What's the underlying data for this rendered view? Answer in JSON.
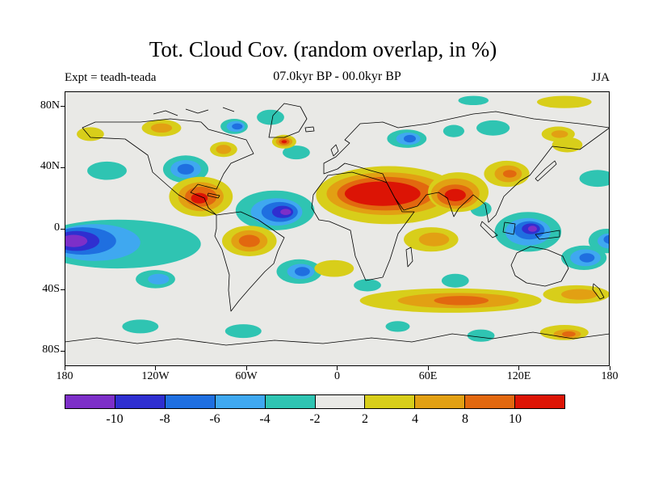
{
  "title": "Tot. Cloud Cov. (random overlap, in %)",
  "subtitle": "07.0kyr BP - 00.0kyr BP",
  "experiment_label": "Expt = teadh-teada",
  "season_label": "JJA",
  "chart_data": {
    "type": "heatmap",
    "variable": "Total cloud cover anomaly (random overlap)",
    "units": "%",
    "title": "Tot. Cloud Cov. (random overlap, in %)",
    "subtitle": "07.0kyr BP - 00.0kyr BP",
    "experiment": "teadh-teada",
    "season": "JJA",
    "projection": "equirectangular",
    "lon_range": [
      -180,
      180
    ],
    "lat_range": [
      -90,
      90
    ],
    "x_ticks": [
      {
        "label": "180",
        "lon": -180
      },
      {
        "label": "120W",
        "lon": -120
      },
      {
        "label": "60W",
        "lon": -60
      },
      {
        "label": "0",
        "lon": 0
      },
      {
        "label": "60E",
        "lon": 60
      },
      {
        "label": "120E",
        "lon": 120
      },
      {
        "label": "180",
        "lon": 180
      }
    ],
    "y_ticks": [
      {
        "label": "80N",
        "lat": 80
      },
      {
        "label": "40N",
        "lat": 40
      },
      {
        "label": "0",
        "lat": 0
      },
      {
        "label": "40S",
        "lat": -40
      },
      {
        "label": "80S",
        "lat": -80
      }
    ],
    "colorbar": {
      "boundary_labels": [
        "-10",
        "-8",
        "-6",
        "-4",
        "-2",
        "2",
        "4",
        "8",
        "10"
      ],
      "segment_colors": [
        "#7d2fc8",
        "#2f2fd0",
        "#1f6fe0",
        "#3fa8f0",
        "#2fc4b2",
        "#e9e9e6",
        "#d8ce1a",
        "#e2a013",
        "#e2680f",
        "#dc1405"
      ]
    },
    "background_value_color": "#e9e9e6",
    "level_colors": {
      "p": "#7d2fc8",
      "i": "#2f2fd0",
      "b": "#1f6fe0",
      "lb": "#3fa8f0",
      "c": "#2fc4b2",
      "y": "#d8ce1a",
      "g": "#e2a013",
      "o": "#e2680f",
      "r": "#dc1405"
    },
    "anomaly_regions": [
      [
        "c",
        -145,
        -10,
        55,
        16
      ],
      [
        "lb",
        -160,
        -9,
        30,
        12
      ],
      [
        "b",
        -168,
        -8,
        22,
        9
      ],
      [
        "i",
        -172,
        -8,
        15,
        6.5
      ],
      [
        "p",
        -174,
        -8,
        9,
        4
      ],
      [
        "c",
        178,
        -8,
        12,
        8
      ],
      [
        "lb",
        180,
        -8,
        8,
        5
      ],
      [
        "b",
        181,
        -7,
        5,
        3
      ],
      [
        "c",
        -41,
        12,
        26,
        13
      ],
      [
        "lb",
        -40,
        11,
        17,
        9
      ],
      [
        "b",
        -38,
        11,
        12,
        6.5
      ],
      [
        "i",
        -36,
        11,
        7,
        4
      ],
      [
        "p",
        -34,
        11,
        3.5,
        2
      ],
      [
        "c",
        -100,
        39,
        15,
        9
      ],
      [
        "lb",
        -100,
        39,
        10,
        6
      ],
      [
        "b",
        -100,
        39,
        5.5,
        3.5
      ],
      [
        "c",
        -152,
        38,
        13,
        6
      ],
      [
        "c",
        126,
        -2,
        22,
        13
      ],
      [
        "lb",
        126,
        -2,
        15,
        9
      ],
      [
        "b",
        127,
        -1,
        10,
        6
      ],
      [
        "i",
        128,
        0,
        6,
        3.5
      ],
      [
        "p",
        129,
        0,
        3,
        2
      ],
      [
        "c",
        163,
        -19,
        15,
        8
      ],
      [
        "lb",
        164,
        -19,
        10,
        5.5
      ],
      [
        "b",
        165,
        -19,
        5,
        3
      ],
      [
        "c",
        -25,
        -28,
        15,
        8
      ],
      [
        "lb",
        -24,
        -28,
        9,
        5
      ],
      [
        "b",
        -23,
        -28,
        5,
        3
      ],
      [
        "c",
        46,
        59,
        13,
        6
      ],
      [
        "lb",
        47,
        59,
        8,
        4
      ],
      [
        "b",
        48,
        59,
        4,
        2.5
      ],
      [
        "c",
        103,
        66,
        11,
        5
      ],
      [
        "c",
        77,
        64,
        7,
        4
      ],
      [
        "c",
        -44,
        73,
        9,
        5
      ],
      [
        "c",
        -68,
        67,
        9,
        5
      ],
      [
        "lb",
        -67,
        67,
        6,
        3.5
      ],
      [
        "b",
        -66,
        67,
        3.5,
        2
      ],
      [
        "c",
        -27,
        50,
        9,
        4.5
      ],
      [
        "c",
        172,
        33,
        12,
        5.5
      ],
      [
        "c",
        95,
        13,
        7,
        5
      ],
      [
        "c",
        78,
        -34,
        9,
        4.5
      ],
      [
        "c",
        20,
        -37,
        9,
        4
      ],
      [
        "c",
        -120,
        -33,
        13,
        6
      ],
      [
        "lb",
        -118,
        -33,
        7,
        3.5
      ],
      [
        "c",
        -62,
        -67,
        12,
        4.5
      ],
      [
        "c",
        95,
        -70,
        9,
        4
      ],
      [
        "c",
        -130,
        -64,
        12,
        4.5
      ],
      [
        "c",
        40,
        -64,
        8,
        3.5
      ],
      [
        "c",
        90,
        84,
        10,
        3
      ],
      [
        "y",
        34,
        22,
        48,
        19
      ],
      [
        "g",
        33,
        23,
        40,
        14
      ],
      [
        "o",
        32,
        23,
        32,
        11
      ],
      [
        "r",
        30,
        23,
        25,
        8
      ],
      [
        "y",
        80,
        24,
        20,
        13
      ],
      [
        "g",
        78,
        23,
        16,
        10
      ],
      [
        "o",
        78,
        22,
        12,
        7
      ],
      [
        "r",
        78,
        22,
        7,
        4
      ],
      [
        "y",
        -90,
        21,
        21,
        13
      ],
      [
        "g",
        -90,
        21,
        15,
        9.5
      ],
      [
        "o",
        -90,
        21,
        10.5,
        6.5
      ],
      [
        "r",
        -91,
        20,
        5.5,
        3.5
      ],
      [
        "y",
        -58,
        -8,
        18,
        10
      ],
      [
        "g",
        -58,
        -8,
        12,
        7
      ],
      [
        "o",
        -58,
        -8,
        7,
        4
      ],
      [
        "y",
        62,
        -7,
        18,
        8
      ],
      [
        "g",
        64,
        -7,
        10,
        4.5
      ],
      [
        "y",
        112,
        36,
        15,
        8.5
      ],
      [
        "g",
        113,
        36,
        9,
        5.5
      ],
      [
        "o",
        114,
        36,
        4.5,
        2.5
      ],
      [
        "y",
        75,
        -47,
        60,
        8
      ],
      [
        "g",
        80,
        -47,
        40,
        5
      ],
      [
        "o",
        82,
        -47,
        18,
        3
      ],
      [
        "y",
        158,
        -43,
        22,
        6
      ],
      [
        "g",
        160,
        -43,
        12,
        3.5
      ],
      [
        "y",
        150,
        -68,
        16,
        5
      ],
      [
        "g",
        152,
        -69,
        9,
        3
      ],
      [
        "o",
        153,
        -69,
        4.5,
        1.8
      ],
      [
        "y",
        -116,
        66,
        13,
        5.5
      ],
      [
        "g",
        -116,
        66,
        7,
        3
      ],
      [
        "y",
        -163,
        62,
        9,
        4.5
      ],
      [
        "y",
        146,
        62,
        11,
        5
      ],
      [
        "g",
        147,
        62,
        5.5,
        2.5
      ],
      [
        "y",
        -35,
        57,
        8,
        4.5
      ],
      [
        "g",
        -35,
        57,
        5.5,
        3
      ],
      [
        "o",
        -35,
        57,
        3.5,
        2
      ],
      [
        "r",
        -35,
        57,
        1.8,
        1
      ],
      [
        "y",
        -2,
        -26,
        13,
        5.5
      ],
      [
        "y",
        -75,
        52,
        9,
        5
      ],
      [
        "g",
        -75,
        52,
        5,
        3
      ],
      [
        "y",
        152,
        55,
        10,
        5
      ],
      [
        "y",
        150,
        83,
        18,
        4
      ]
    ],
    "basemap_paths": [
      "M22,45 L38,38 L94,38 L131,34 L169,38 L178,47 L225,60 L234,77 L206,89 L197,102 L188,121 L165,115 L156,125 L173,132 L178,144 L188,153 L165,142 L141,128 L126,115 L109,100 L103,79 L75,59 L32,57 Z",
      "M188,153 L218,149 L240,159 L272,181 L264,198 L259,213 L248,223 L229,244 L216,259 L206,272 L203,246 L204,227 L195,196 L186,179 L188,170 Z",
      "M326,104 L356,100 L394,111 L399,113 L418,149 L433,149 L413,176 L403,208 L394,230 L373,234 L360,204 L354,172 L328,161 L315,159 L306,144 L308,128 L319,113 Z",
      "M321,102 L321,89 L336,81 L353,64 L347,60 L366,40 L394,38 L413,45 L450,40 L506,28 L534,25 L581,34 L638,40 L675,45 L638,72 L604,68 L591,85 L576,104 L564,111 L544,130 L534,153 L525,162 L521,140 L506,128 L488,145 L482,155 L474,132 L463,125 L448,128 L437,142 L420,147 L409,132 L399,113 L394,102 L379,98 L366,94 L347,89 L338,96 Z",
      "M330,72 L336,66 L339,74 L333,80 Z",
      "M253,57 L258,30 L272,15 L292,19 L300,34 L290,50 L272,57 Z",
      "M553,215 L560,200 L577,192 L598,196 L617,204 L624,219 L615,235 L595,241 L572,237 L558,228 Z",
      "M583,177 L613,172 L613,180 L588,183 Z",
      "M423,196 L429,193 L431,210 L425,217 Z",
      "M517,161 L536,178 L530,181 L515,166 Z",
      "M545,162 L558,164 L556,177 L543,174 Z",
      "M583,108 L595,96 L607,86 L609,90 L597,101 L586,111 Z",
      "M178,126 L192,129 L190,132 L177,129 Z",
      "M655,238 L662,244 L668,255 L663,257 L654,245 Z",
      "M298,45 L308,44 L309,49 L299,50 Z",
      "M0,310 L40,305 L90,312 L140,306 L200,314 L260,308 L320,312 L380,305 L430,310 L480,300 L530,306 L580,298 L630,306 L675,300",
      "M110,28 L125,24 L140,30",
      "M150,22 L165,27 L178,23",
      "M196,20 L210,25"
    ]
  }
}
